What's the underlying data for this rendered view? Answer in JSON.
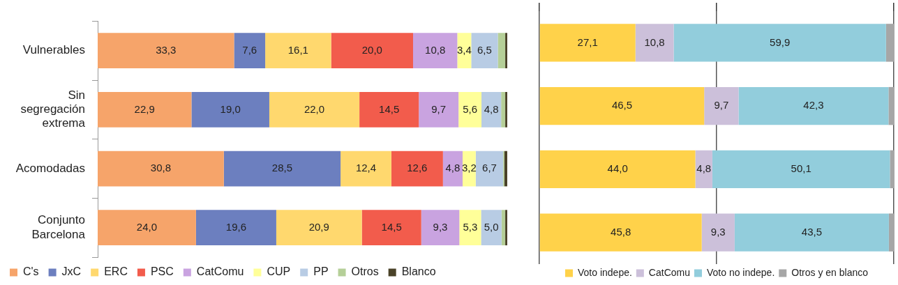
{
  "chart_data": [
    {
      "type": "bar",
      "orientation": "horizontal",
      "stacked": true,
      "categories": [
        "Vulnerables",
        "Sin segregación extrema",
        "Acomodadas",
        "Conjunto Barcelona"
      ],
      "xlim": [
        0,
        100
      ],
      "tick_labels": "y",
      "legend": "bottom",
      "series": [
        {
          "name": "C's",
          "color": "#f6a46a",
          "values": [
            33.3,
            22.9,
            30.8,
            24.0
          ],
          "value_labels": [
            "33,3",
            "22,9",
            "30,8",
            "24,0"
          ]
        },
        {
          "name": "JxC",
          "color": "#6c7fbf",
          "values": [
            7.6,
            19.0,
            28.5,
            19.6
          ],
          "value_labels": [
            "7,6",
            "19,0",
            "28,5",
            "19,6"
          ]
        },
        {
          "name": "ERC",
          "color": "#ffd86e",
          "values": [
            16.1,
            22.0,
            12.4,
            20.9
          ],
          "value_labels": [
            "16,1",
            "22,0",
            "12,4",
            "20,9"
          ]
        },
        {
          "name": "PSC",
          "color": "#f25c4c",
          "values": [
            20.0,
            14.5,
            12.6,
            14.5
          ],
          "value_labels": [
            "20,0",
            "14,5",
            "12,6",
            "14,5"
          ]
        },
        {
          "name": "CatComu",
          "color": "#c9a3e0",
          "values": [
            10.8,
            9.7,
            4.8,
            9.3
          ],
          "value_labels": [
            "10,8",
            "9,7",
            "4,8",
            "9,3"
          ]
        },
        {
          "name": "CUP",
          "color": "#ffff99",
          "values": [
            3.4,
            5.6,
            3.2,
            5.3
          ],
          "value_labels": [
            "3,4",
            "5,6",
            "3,2",
            "5,3"
          ]
        },
        {
          "name": "PP",
          "color": "#b8cce4",
          "values": [
            6.5,
            4.8,
            6.7,
            5.0
          ],
          "value_labels": [
            "6,5",
            "4,8",
            "6,7",
            "5,0"
          ]
        },
        {
          "name": "Otros",
          "color": "#b5cf98",
          "values": [
            1.8,
            1.0,
            0.3,
            0.9
          ],
          "value_labels": [
            null,
            null,
            null,
            null
          ]
        },
        {
          "name": "Blanco",
          "color": "#4a4228",
          "values": [
            0.5,
            0.5,
            0.7,
            0.5
          ],
          "value_labels": [
            null,
            null,
            null,
            null
          ]
        }
      ]
    },
    {
      "type": "bar",
      "orientation": "horizontal",
      "stacked": true,
      "categories": [
        null,
        null,
        null,
        null
      ],
      "xlim": [
        0,
        100
      ],
      "xticks": [
        {
          "value": 0,
          "label": null
        },
        {
          "value": 50,
          "label": null
        },
        {
          "value": 100,
          "label": null
        }
      ],
      "grid": "x",
      "tick_labels": false,
      "legend": "bottom",
      "series": [
        {
          "name": "Voto indepe.",
          "color": "#ffd24a",
          "values": [
            27.1,
            46.5,
            44.0,
            45.8
          ],
          "value_labels": [
            "27,1",
            "46,5",
            "44,0",
            "45,8"
          ]
        },
        {
          "name": "CatComu",
          "color": "#ccc0da",
          "values": [
            10.8,
            9.7,
            4.8,
            9.3
          ],
          "value_labels": [
            "10,8",
            "9,7",
            "4,8",
            "9,3"
          ]
        },
        {
          "name": "Voto no indepe.",
          "color": "#92cddc",
          "values": [
            59.9,
            42.3,
            50.1,
            43.5
          ],
          "value_labels": [
            "59,9",
            "42,3",
            "50,1",
            "43,5"
          ]
        },
        {
          "name": "Otros y en blanco",
          "color": "#a6a6a6",
          "values": [
            2.2,
            1.5,
            1.1,
            1.4
          ],
          "value_labels": [
            null,
            null,
            null,
            null
          ]
        }
      ]
    }
  ]
}
